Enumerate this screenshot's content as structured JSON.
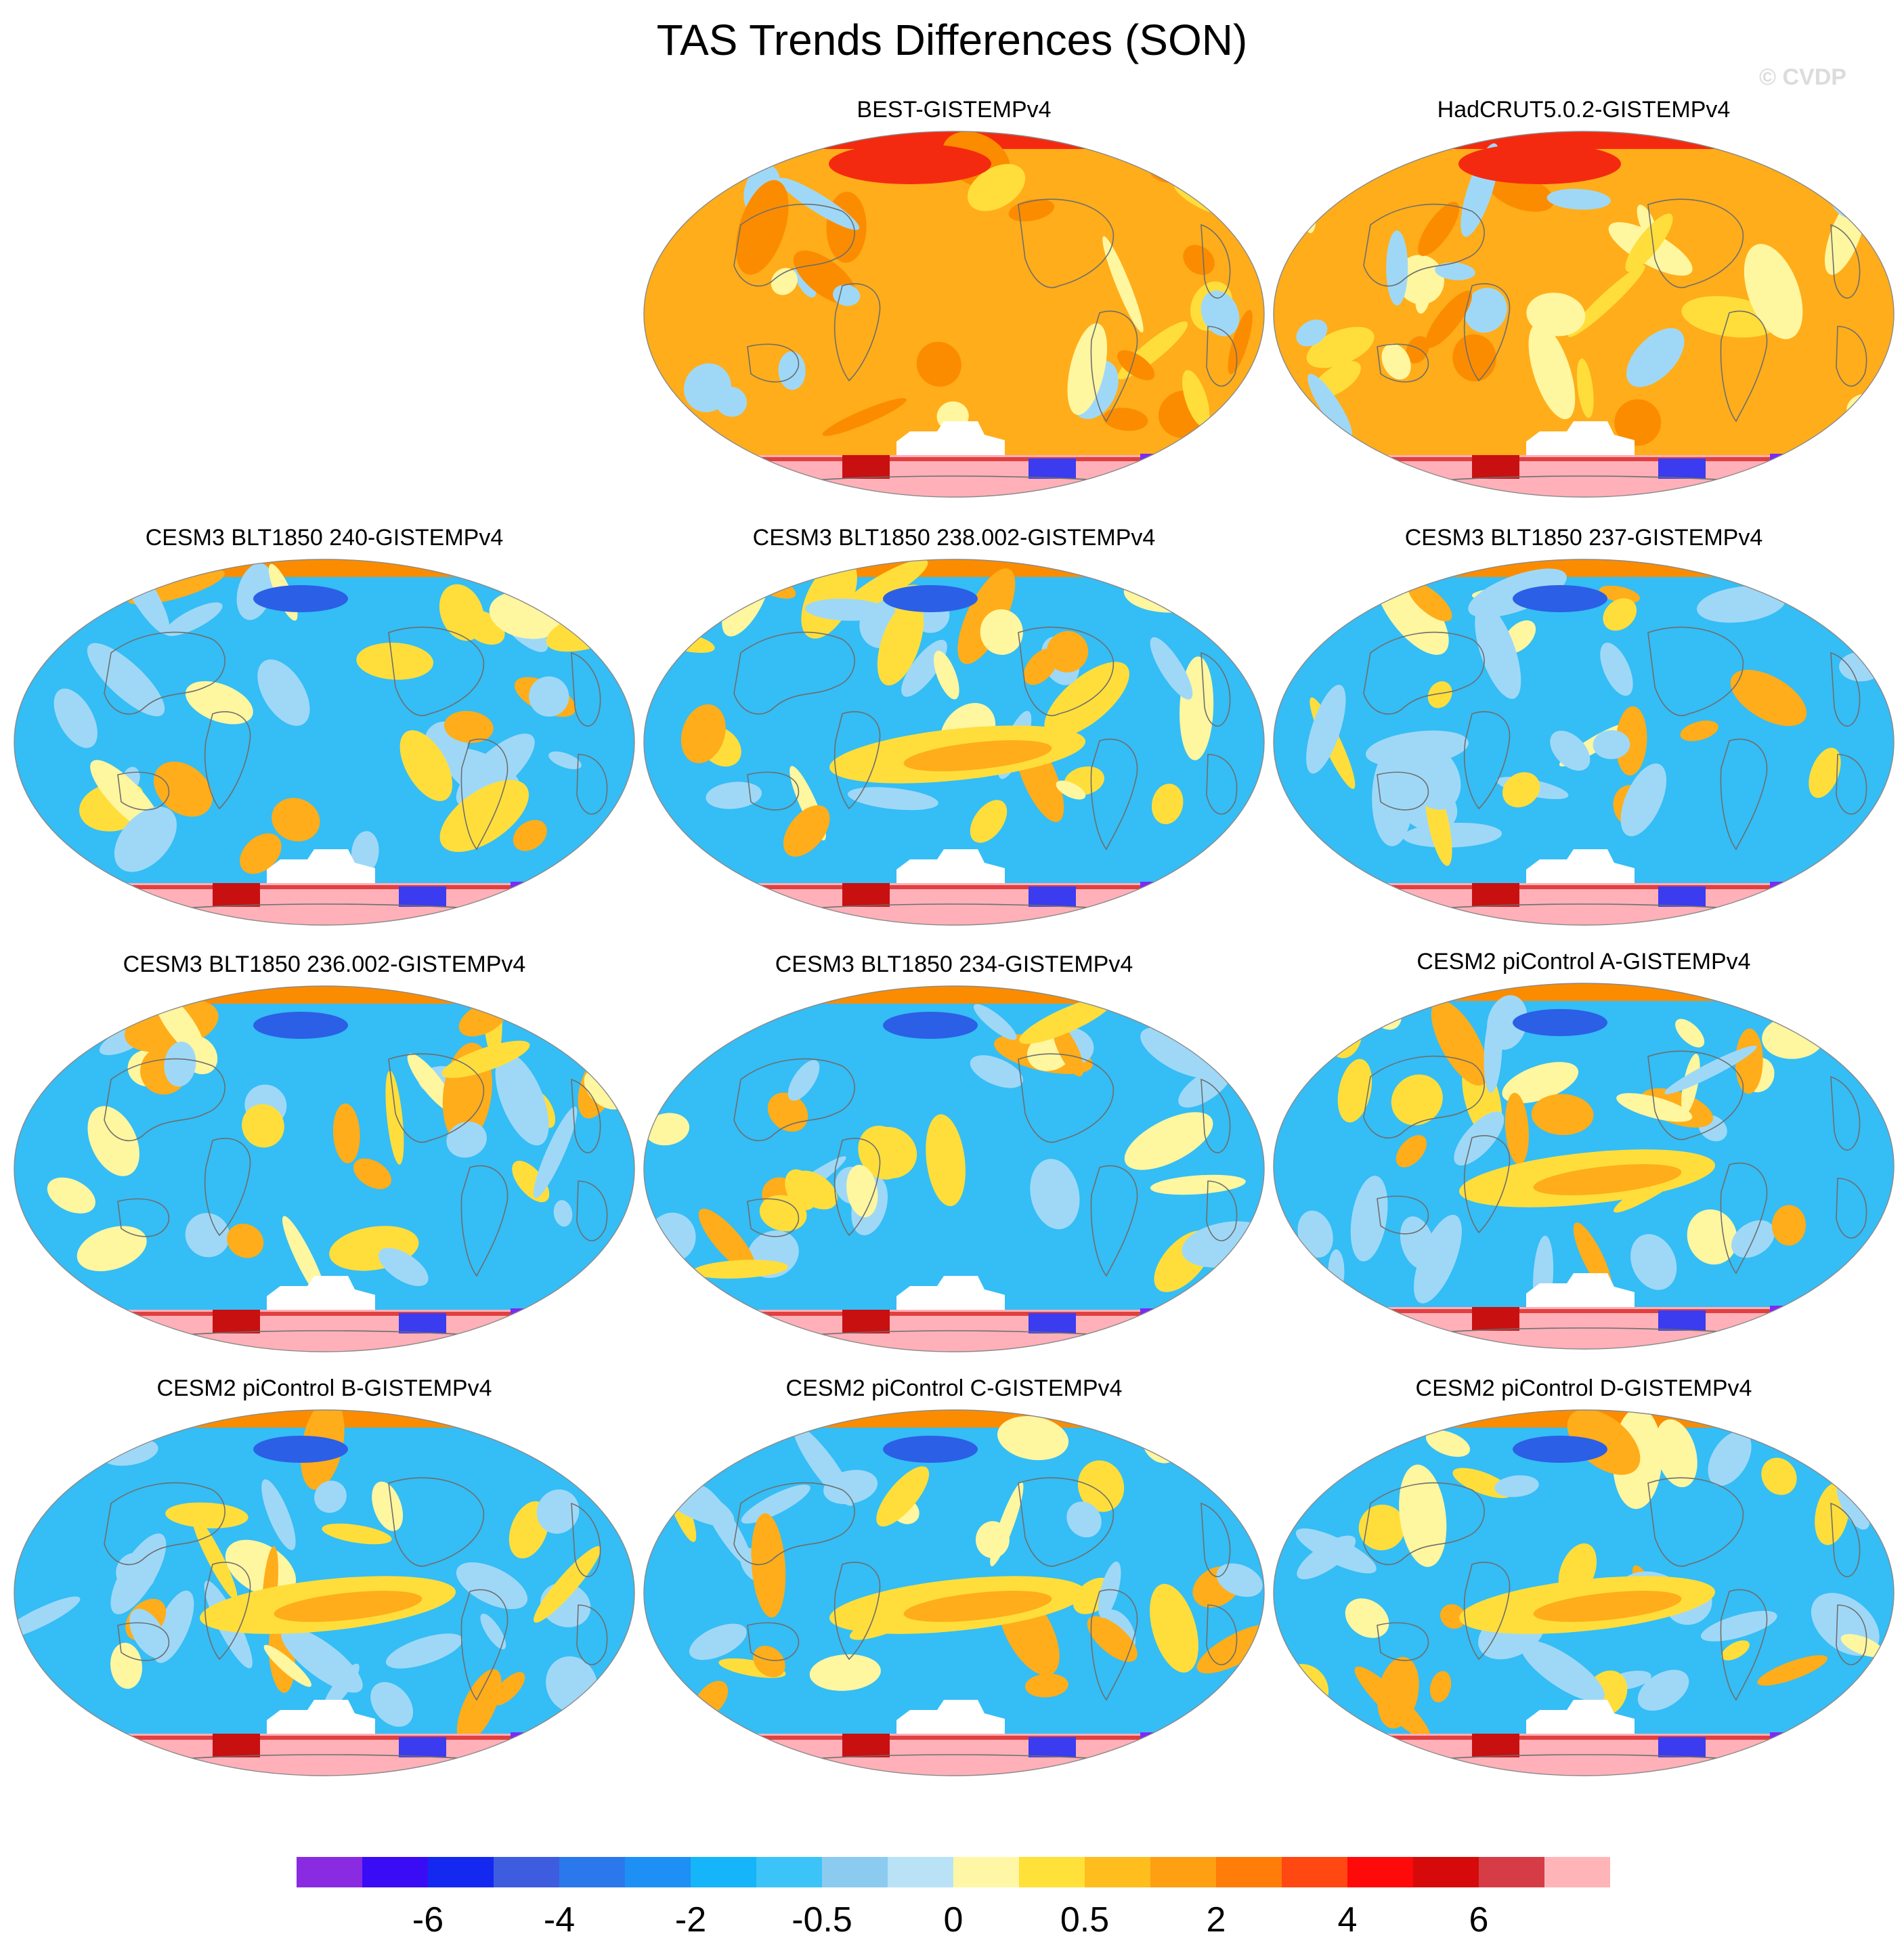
{
  "title": "TAS Trends Differences (SON)",
  "watermark": "© CVDP",
  "palette": {
    "ocean_blue": "#35bdf5",
    "light_blue": "#9fd8f7",
    "pale_yellow": "#fff6a0",
    "yellow": "#ffde3c",
    "orange": "#ffad1a",
    "dark_orange": "#fb8c00",
    "red": "#f42a10",
    "deep_red": "#c81010",
    "dark_blue": "#3b3bf0",
    "violet": "#7a2bf5",
    "antarctic_pink": "#ffb0b8",
    "land_outline": "#6e6e6e"
  },
  "panels": [
    {
      "id": "best",
      "title": "BEST-GISTEMPv4",
      "base": "warm"
    },
    {
      "id": "hadcrut",
      "title": "HadCRUT5.0.2-GISTEMPv4",
      "base": "warm"
    },
    {
      "id": "cesm3-240",
      "title": "CESM3 BLT1850 240-GISTEMPv4",
      "base": "cool"
    },
    {
      "id": "cesm3-238002",
      "title": "CESM3 BLT1850 238.002-GISTEMPv4",
      "base": "cool-enso"
    },
    {
      "id": "cesm3-237",
      "title": "CESM3 BLT1850 237-GISTEMPv4",
      "base": "cool"
    },
    {
      "id": "cesm3-236002",
      "title": "CESM3 BLT1850 236.002-GISTEMPv4",
      "base": "cool"
    },
    {
      "id": "cesm3-234",
      "title": "CESM3 BLT1850 234-GISTEMPv4",
      "base": "cool"
    },
    {
      "id": "cesm2-a",
      "title": "CESM2 piControl A-GISTEMPv4",
      "base": "cool-enso"
    },
    {
      "id": "cesm2-b",
      "title": "CESM2 piControl B-GISTEMPv4",
      "base": "cool-enso"
    },
    {
      "id": "cesm2-c",
      "title": "CESM2 piControl C-GISTEMPv4",
      "base": "cool-enso"
    },
    {
      "id": "cesm2-d",
      "title": "CESM2 piControl D-GISTEMPv4",
      "base": "cool-enso"
    }
  ],
  "colorbar": {
    "colors": [
      "#8a2be2",
      "#3a0cf5",
      "#1428f0",
      "#3e5ce0",
      "#2a78eb",
      "#1e90f5",
      "#16b4f8",
      "#3cc3f7",
      "#8ccbf0",
      "#b9e2f7",
      "#fff7a6",
      "#ffe13a",
      "#ffbd1e",
      "#ff9f12",
      "#ff7d08",
      "#ff4812",
      "#ff0a0a",
      "#d60a0a",
      "#d63c45",
      "#ffb4b8"
    ],
    "labels": [
      "-6",
      "-4",
      "-2",
      "-0.5",
      "0",
      "0.5",
      "2",
      "4",
      "6"
    ]
  }
}
